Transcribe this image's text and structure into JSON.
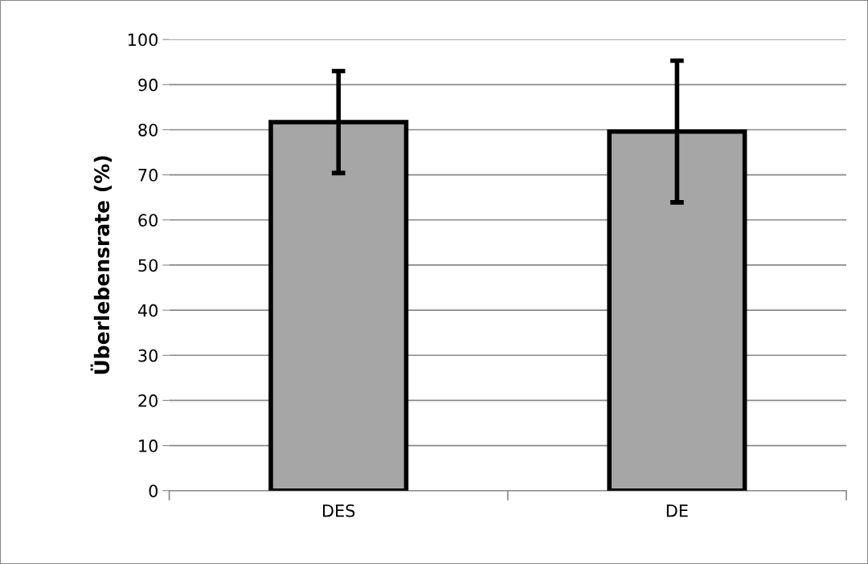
{
  "chart_data": {
    "type": "bar",
    "ylabel": "Überlebensrate (%)",
    "categories": [
      "DES",
      "DE"
    ],
    "values": [
      81.7,
      79.6
    ],
    "errors": [
      11.3,
      15.7
    ],
    "color": "#a6a6a6",
    "ylim": [
      0,
      100
    ],
    "yticks": [
      0,
      10,
      20,
      30,
      40,
      50,
      60,
      70,
      80,
      90,
      100
    ],
    "grid": "y"
  }
}
